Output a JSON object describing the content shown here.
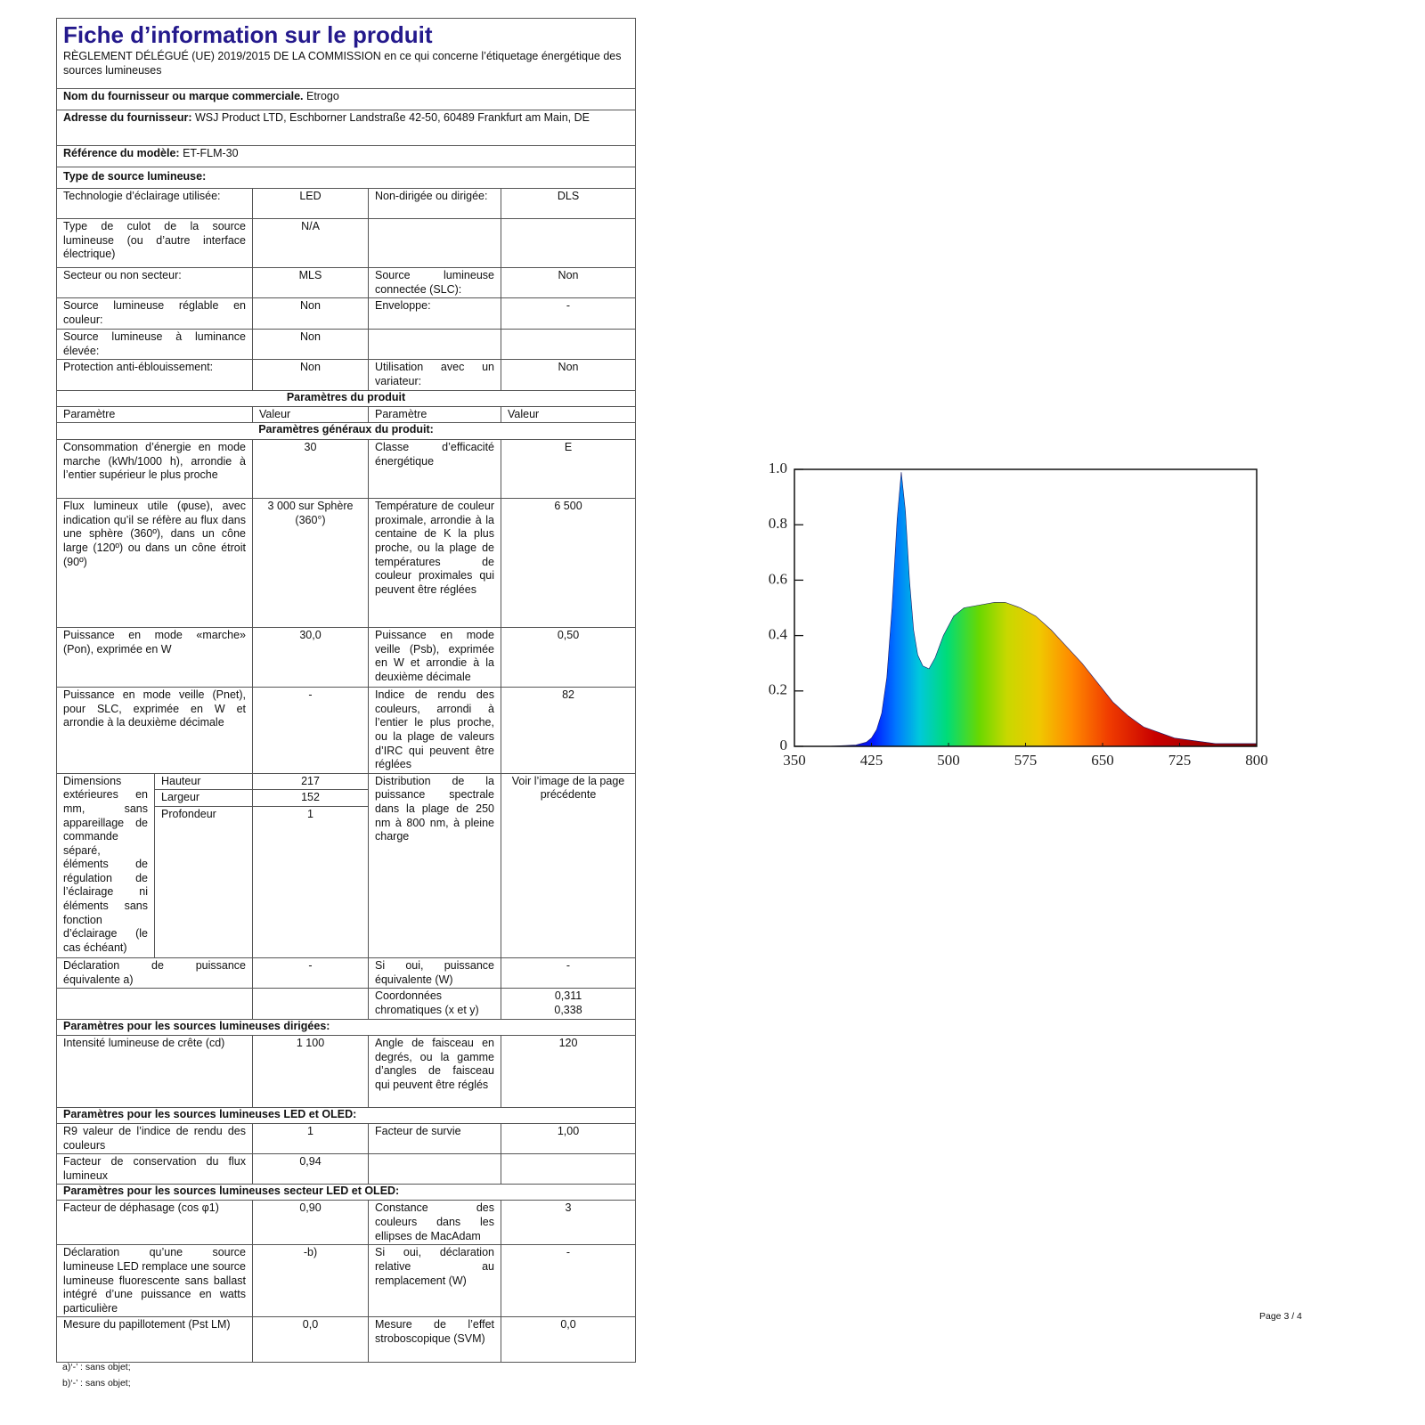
{
  "header": {
    "title": "Fiche d’information sur le produit",
    "subtitle": "RÈGLEMENT DÉLÉGUÉ (UE) 2019/2015 DE LA COMMISSION en ce qui concerne l’étiquetage énergétique des sources lumineuses"
  },
  "supplier": {
    "name_label": "Nom du fournisseur ou marque commerciale.",
    "name": "Etrogo",
    "address_label": "Adresse du fournisseur:",
    "address": "WSJ Product LTD, Eschborner Landstraße 42-50, 60489 Frankfurt am Main, DE",
    "model_label": "Référence du modèle:",
    "model": "ET-FLM-30",
    "type_heading": "Type de source lumineuse:"
  },
  "table": {
    "rows": [
      {
        "cells": [
          "Technologie d’éclairage utilisée:",
          "LED",
          "Non-dirigée ou dirigée:",
          "DLS"
        ]
      },
      {
        "cells": [
          "Type de culot de la source lumineuse (ou d’autre interface électrique)",
          "N/A",
          null,
          null
        ]
      },
      {
        "cells": [
          "Secteur ou non secteur:",
          "MLS",
          "Source lumineuse connectée (SLC):",
          "Non"
        ]
      },
      {
        "cells": [
          "Source lumineuse réglable en couleur:",
          "Non",
          "Enveloppe:",
          "-"
        ]
      },
      {
        "cells": [
          "Source lumineuse à luminance élevée:",
          "Non",
          null,
          null
        ]
      },
      {
        "cells": [
          "Protection anti-éblouissement:",
          "Non",
          "Utilisation avec un variateur:",
          "Non"
        ]
      },
      {
        "heading": "Paramètres du produit"
      },
      {
        "cells": [
          "Paramètre",
          "Valeur",
          "Paramètre",
          "Valeur"
        ]
      },
      {
        "heading": "Paramètres généraux du produit:"
      },
      {
        "cells": [
          "Consommation d’énergie en mode marche (kWh/1000 h), arrondie à l’entier supérieur le plus proche",
          "30",
          "Classe d’efficacité énergétique",
          "E"
        ]
      },
      {
        "cells": [
          "Flux lumineux utile (φuse), avec indication qu’il se réfère au flux dans une sphère (360º), dans un cône large (120º) ou dans un cône étroit (90º)",
          "3 000 sur Sphère (360°)",
          "Température de couleur proximale, arrondie à la centaine de K la plus proche, ou la plage de températures de couleur proximales qui peuvent être réglées",
          "6 500"
        ]
      },
      {
        "cells": [
          "Puissance en mode «marche» (Pon), exprimée en W",
          "30,0",
          "Puissance en mode veille (Psb), exprimée en W et arrondie à la deuxième décimale",
          "0,50"
        ]
      },
      {
        "cells": [
          "Puissance en mode veille (Pnet), pour SLC, exprimée en W et arrondie à la deuxième décimale",
          "-",
          "Indice de rendu des couleurs, arrondi à l’entier le plus proche, ou la plage de valeurs d’IRC qui peuvent être réglées",
          "82"
        ]
      },
      {
        "label": "Dimensions extérieures en mm, sans appareillage de commande séparé, éléments de régulation de l’éclairage ni éléments sans fonction d’éclairage (le cas échéant)",
        "dimensions": [
          [
            "Hauteur",
            "217"
          ],
          [
            "Largeur",
            "152"
          ],
          [
            "Profondeur",
            "1"
          ]
        ],
        "right": [
          "Distribution de la puissance spectrale dans la plage de 250 nm à 800 nm, à pleine charge",
          "Voir l’image de la page précédente"
        ]
      },
      {
        "cells": [
          "Déclaration de puissance équivalente a)",
          "-",
          "Si oui, puissance équivalente (W)",
          "-"
        ]
      },
      {
        "cells": [
          null,
          null,
          "Coordonnées chromatiques (x et y)",
          [
            "0,311",
            "0,338"
          ]
        ]
      },
      {
        "heading": "Paramètres pour les sources lumineuses dirigées:"
      },
      {
        "cells": [
          "Intensité lumineuse de crête (cd)",
          "1 100",
          "Angle de faisceau en degrés, ou la gamme d’angles de faisceau qui peuvent être réglés",
          "120"
        ]
      },
      {
        "heading": "Paramètres pour les sources lumineuses LED et OLED:"
      },
      {
        "cells": [
          "R9 valeur de l’indice de rendu des couleurs",
          "1",
          "Facteur de survie",
          "1,00"
        ]
      },
      {
        "cells": [
          "Facteur de conservation du flux lumineux",
          "0,94",
          null,
          null
        ]
      },
      {
        "heading": "Paramètres pour les sources lumineuses secteur LED et OLED:"
      },
      {
        "cells": [
          "Facteur de déphasage (cos φ1)",
          "0,90",
          "Constance des couleurs dans les ellipses de MacAdam",
          "3"
        ]
      },
      {
        "cells": [
          "Déclaration qu’une source lumineuse LED remplace une source lumineuse fluorescente sans ballast intégré d’une puissance en watts particulière",
          "-b)",
          "Si oui, déclaration relative au remplacement (W)",
          "-"
        ]
      },
      {
        "cells": [
          "Mesure du papillotement (Pst LM)",
          "0,0",
          "Mesure de l’effet stroboscopique (SVM)",
          "0,0"
        ]
      }
    ]
  },
  "footnotes": [
    "a)‘-’ : sans objet;",
    "b)‘-’ : sans objet;"
  ],
  "page_number": "Page 3 / 4",
  "chart_data": {
    "type": "area",
    "x": [
      350,
      380,
      400,
      410,
      420,
      425,
      430,
      435,
      440,
      445,
      450,
      454,
      458,
      462,
      466,
      470,
      475,
      481,
      487,
      495,
      505,
      515,
      530,
      545,
      555,
      570,
      585,
      600,
      615,
      630,
      645,
      660,
      675,
      690,
      705,
      720,
      740,
      760,
      780,
      800
    ],
    "values": [
      0,
      0,
      0.003,
      0.005,
      0.015,
      0.03,
      0.06,
      0.12,
      0.25,
      0.5,
      0.82,
      0.99,
      0.85,
      0.6,
      0.42,
      0.33,
      0.29,
      0.28,
      0.32,
      0.4,
      0.47,
      0.5,
      0.51,
      0.52,
      0.52,
      0.5,
      0.47,
      0.42,
      0.36,
      0.3,
      0.23,
      0.16,
      0.11,
      0.07,
      0.05,
      0.03,
      0.02,
      0.01,
      0.01,
      0.01
    ],
    "xlim": [
      350,
      800
    ],
    "ylim": [
      0,
      1
    ],
    "xticks": [
      350,
      425,
      500,
      575,
      650,
      725,
      800
    ],
    "yticks": [
      0,
      0.2,
      0.4,
      0.6,
      0.8,
      {
        "value": 1,
        "label": "1.0"
      }
    ]
  }
}
